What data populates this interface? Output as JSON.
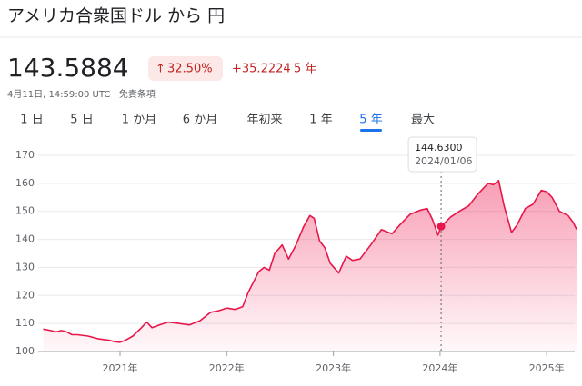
{
  "header": {
    "title": "アメリカ合衆国ドル から 円",
    "price": "143.5884",
    "change_pct": "32.50%",
    "change_abs": "+35.2224",
    "period": "5 年",
    "timestamp": "4月11日, 14:59:00 UTC · 免責条項"
  },
  "tabs": [
    "1 日",
    "5 日",
    "1 か月",
    "6 か月",
    "年初来",
    "1 年",
    "5 年",
    "最大"
  ],
  "active_tab": 6,
  "chart_data": {
    "type": "line",
    "color": "#e8174a",
    "x": [
      2020.28,
      2020.35,
      2020.4,
      2020.45,
      2020.5,
      2020.55,
      2020.6,
      2020.7,
      2020.8,
      2020.9,
      2020.95,
      2021.0,
      2021.05,
      2021.12,
      2021.2,
      2021.25,
      2021.3,
      2021.37,
      2021.45,
      2021.55,
      2021.65,
      2021.75,
      2021.85,
      2021.92,
      2022.0,
      2022.08,
      2022.15,
      2022.2,
      2022.3,
      2022.35,
      2022.4,
      2022.45,
      2022.52,
      2022.58,
      2022.65,
      2022.72,
      2022.78,
      2022.82,
      2022.87,
      2022.92,
      2022.97,
      2023.05,
      2023.12,
      2023.18,
      2023.25,
      2023.35,
      2023.45,
      2023.55,
      2023.62,
      2023.72,
      2023.82,
      2023.88,
      2023.93,
      2023.98,
      2024.01,
      2024.1,
      2024.18,
      2024.27,
      2024.35,
      2024.45,
      2024.5,
      2024.55,
      2024.6,
      2024.67,
      2024.72,
      2024.8,
      2024.87,
      2024.95,
      2025.0,
      2025.05,
      2025.12,
      2025.2,
      2025.25,
      2025.28
    ],
    "values": [
      108,
      107.5,
      107,
      107.5,
      107,
      106,
      106,
      105.5,
      104.5,
      104,
      103.5,
      103.3,
      104,
      105.5,
      108.5,
      110.5,
      108.5,
      109.5,
      110.5,
      110,
      109.5,
      111,
      114,
      114.5,
      115.5,
      115,
      116,
      121,
      128.5,
      130,
      129,
      135,
      138,
      133,
      138,
      144.5,
      148.5,
      147.5,
      139.5,
      137,
      131.5,
      128,
      134,
      132.5,
      133,
      138,
      143.5,
      142,
      145,
      149,
      150.5,
      151,
      147,
      141.5,
      144.63,
      148,
      150,
      152,
      156,
      160,
      159.5,
      161,
      152,
      142.5,
      145,
      151,
      152.5,
      157.5,
      157,
      155,
      150,
      148.5,
      146,
      143.6
    ],
    "xlim": [
      2020.25,
      2025.28
    ],
    "xticks": [
      {
        "value": 2021,
        "label": "2021年"
      },
      {
        "value": 2022,
        "label": "2022年"
      },
      {
        "value": 2023,
        "label": "2023年"
      },
      {
        "value": 2024,
        "label": "2024年"
      },
      {
        "value": 2025,
        "label": "2025年"
      }
    ],
    "ylim": [
      100,
      172
    ],
    "yticks": [
      100,
      110,
      120,
      130,
      140,
      150,
      160,
      170
    ],
    "grid": true,
    "tooltip": {
      "x": 2024.01,
      "value": 144.63,
      "label": "144.6300",
      "date": "2024/01/06"
    }
  }
}
